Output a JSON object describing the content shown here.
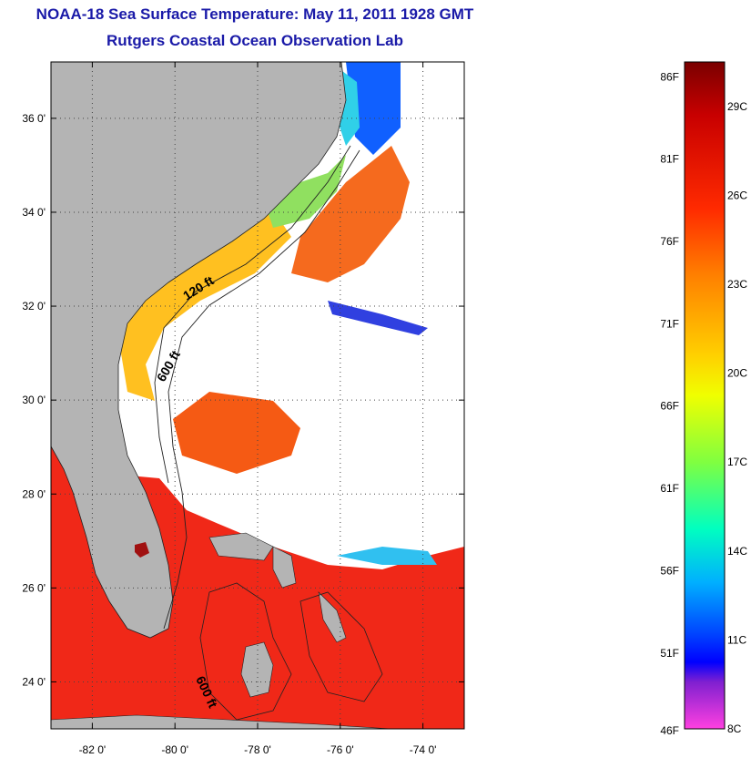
{
  "header": {
    "title": "NOAA-18 Sea Surface Temperature:  May 11, 2011 1928 GMT",
    "subtitle": "Rutgers Coastal Ocean Observation Lab"
  },
  "map": {
    "lat_range": [
      23,
      37.2
    ],
    "lon_range": [
      -83,
      -73
    ],
    "lat_ticks": [
      "24 0'",
      "26 0'",
      "28 0'",
      "30 0'",
      "32 0'",
      "34 0'",
      "36 0'"
    ],
    "lon_ticks": [
      "-82 0'",
      "-80 0'",
      "-78 0'",
      "-76 0'",
      "-74 0'"
    ],
    "contour_labels": [
      "120 ft",
      "600 ft",
      "600 ft"
    ],
    "colors": {
      "land": "#b4b4b4",
      "cloud": "#ffffff",
      "warm": "#f02818",
      "hot": "#a01010"
    }
  },
  "colorbar": {
    "fahrenheit_labels": [
      "86F",
      "81F",
      "76F",
      "71F",
      "66F",
      "61F",
      "56F",
      "51F",
      "46F"
    ],
    "celsius_labels": [
      "29C",
      "26C",
      "23C",
      "20C",
      "17C",
      "14C",
      "11C",
      "8C"
    ],
    "range_c": [
      8,
      30.5
    ]
  }
}
